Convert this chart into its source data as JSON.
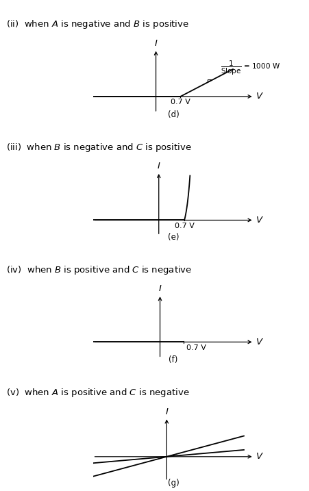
{
  "fig_width": 4.52,
  "fig_height": 7.17,
  "bg_color": "#ffffff",
  "panels": [
    {
      "label": "(d)",
      "title_roman": "(ii)",
      "title_text": "  when $A$ is negative and $B$ is positive",
      "type": "linear_diode",
      "vt": 0.7
    },
    {
      "label": "(e)",
      "title_roman": "(iii)",
      "title_text": "  when $B$ is negative and $C$ is positive",
      "type": "exp_diode",
      "vt": 0.7
    },
    {
      "label": "(f)",
      "title_roman": "(iv)",
      "title_text": "  when $B$ is positive and $C$ is negative",
      "type": "reverse_diode",
      "vt": 0.7
    },
    {
      "label": "(g)",
      "title_roman": "(v)",
      "title_text": "  when $A$ is positive and $C$ is negative",
      "type": "two_lines",
      "vt": 0.0
    }
  ],
  "arrow_style": {
    "color": "black",
    "lw": 1.0
  },
  "line_lw": 1.3,
  "axis_lw": 0.9,
  "title_fontsize": 9.5,
  "label_fontsize": 8.5,
  "tick_fontsize": 8.0,
  "iv_fontsize": 9.5
}
